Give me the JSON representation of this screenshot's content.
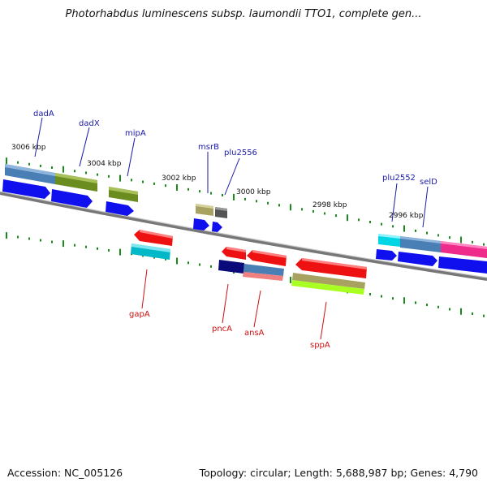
{
  "title": "Photorhabdus luminescens subsp. laumondii TTO1, complete gen...",
  "footer": {
    "accession": "Accession: NC_005126",
    "summary": "Topology: circular; Length: 5,688,987 bp; Genes: 4,790"
  },
  "scale_labels": [
    "3006 kbp",
    "3004 kbp",
    "3002 kbp",
    "3000 kbp",
    "2998 kbp",
    "2996 kbp"
  ],
  "gene_labels_top": [
    "dadA",
    "dadX",
    "mipA",
    "msrB",
    "plu2556",
    "plu2552",
    "selD"
  ],
  "gene_labels_bottom": [
    "gapA",
    "pncA",
    "ansA",
    "sppA"
  ],
  "colors": {
    "label_top": "#1a1aaa",
    "label_bottom": "#cc1111",
    "backbone": "#888888",
    "tick": "#1a8a1a",
    "strand_arrow": "#1010ee",
    "reverse_arrow": "#ee1111"
  }
}
